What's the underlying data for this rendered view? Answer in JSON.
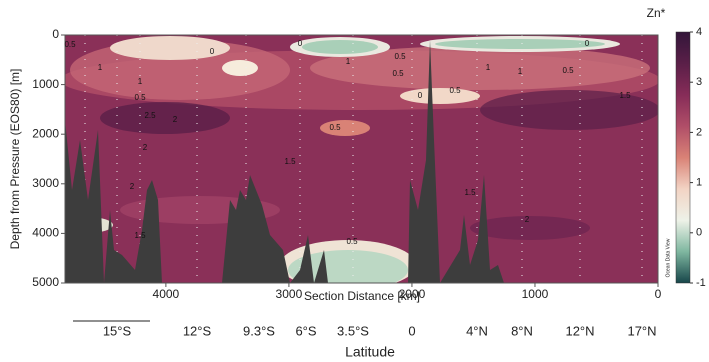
{
  "chart_data": {
    "type": "contour",
    "title": "Zn*",
    "x_label": "Section Distance [km]",
    "y_label": "Depth from Pressure (EOS80) [m]",
    "xlim": [
      4820,
      0
    ],
    "xticks": [
      4000,
      3000,
      2000,
      1000,
      0
    ],
    "ylim": [
      0,
      5000
    ],
    "yticks": [
      0,
      1000,
      2000,
      3000,
      4000,
      5000
    ],
    "colorbar": {
      "lim": [
        -1,
        4
      ],
      "ticks": [
        4,
        3,
        2,
        1,
        0,
        -1
      ],
      "colors": [
        "#17464a",
        "#7fb7a0",
        "#eef2e8",
        "#f2d3c4",
        "#d98276",
        "#b04e68",
        "#862c58",
        "#5a1f48",
        "#33163a"
      ]
    },
    "watermark": "Ocean Data View",
    "secondary_x_label": "Latitude",
    "latitudes": [
      "15°S",
      "12°S",
      "9.3°S",
      "6°S",
      "3.5°S",
      "0",
      "4°N",
      "8°N",
      "12°N",
      "17°N"
    ],
    "contour_labels": [
      0.5,
      1,
      0,
      0,
      0.5,
      0,
      1,
      0.5,
      1,
      1.5,
      0.5,
      1,
      1,
      0,
      0.5,
      0.5,
      2.5,
      2,
      2,
      0.5,
      1.5,
      1.5,
      2,
      2,
      0.5,
      1.5
    ]
  }
}
